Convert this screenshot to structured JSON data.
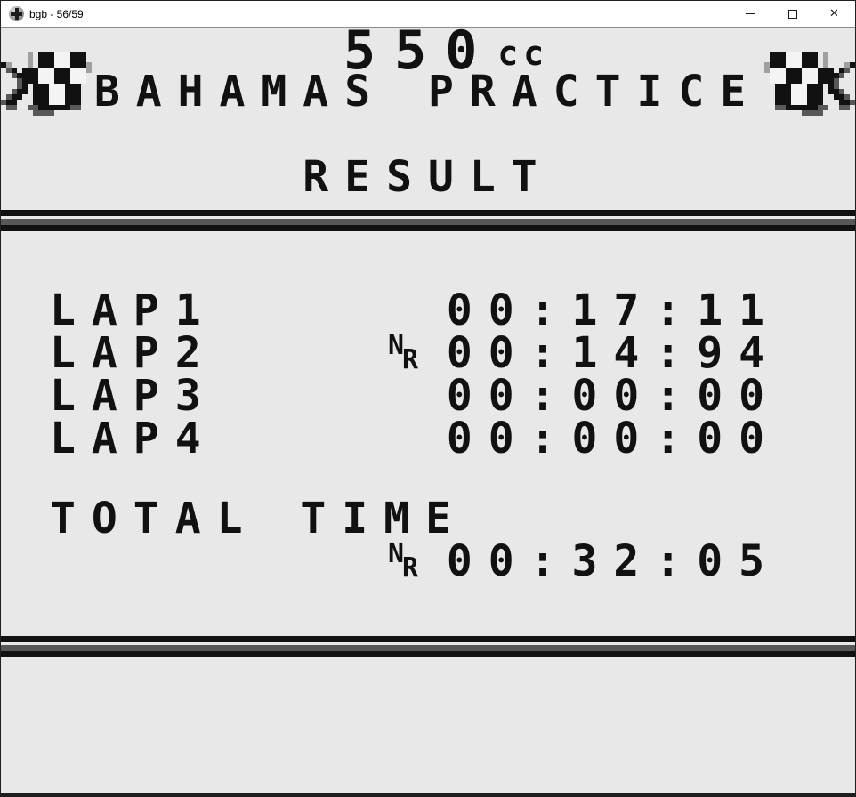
{
  "window": {
    "title": "bgb - 56/59",
    "close_glyph": "✕"
  },
  "palette": {
    "screen_bg": "#e8e8e8",
    "ink": "#111111",
    "mid_gray": "#a0a0a0",
    "dark_gray": "#585858",
    "checker_white": "#f4f4f4"
  },
  "header": {
    "engine_class": "550",
    "engine_unit": "cc",
    "track_title": "BAHAMAS PRACTICE"
  },
  "result": {
    "heading": "RESULT",
    "laps": [
      {
        "label": "LAP1",
        "record_top": "",
        "record_bottom": "",
        "time": "00:17:11"
      },
      {
        "label": "LAP2",
        "record_top": "N",
        "record_bottom": "R",
        "time": "00:14:94"
      },
      {
        "label": "LAP3",
        "record_top": "",
        "record_bottom": "",
        "time": "00:00:00"
      },
      {
        "label": "LAP4",
        "record_top": "",
        "record_bottom": "",
        "time": "00:00:00"
      }
    ],
    "total_label": "TOTAL TIME",
    "total": {
      "record_top": "N",
      "record_bottom": "R",
      "time": "00:32:05"
    }
  },
  "flag": {
    "cell": 6,
    "colors": {
      "K": "#111111",
      "W": "#f4f4f4",
      "G": "#a0a0a0",
      "D": "#585858"
    },
    "rows": [
      ".....G.KKKWWWKKK.....",
      ".....G.KKKWWWKKK.....",
      "KG...G.KKKWWWKKKG....",
      ".DK.KKKWWWKKKWWWG....",
      "..DKKKKWWWKKKWWW.....",
      "...DKKKWWWKKKWWW.....",
      "...DK.KKKWWWKKK......",
      "..DKK.KKKWWWKKK......",
      ".DKK..KKKWWWKKK......",
      "DKK...KKKWWWKKK......",
      ".DD..DDKKKKKKDD......",
      "......DDDD..........."
    ]
  }
}
